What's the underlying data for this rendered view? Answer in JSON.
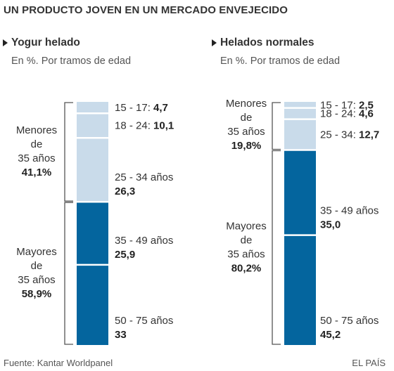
{
  "title": "UN PRODUCTO JOVEN EN UN MERCADO ENVEJECIDO",
  "colors": {
    "young": "#c9dbea",
    "old": "#04659e",
    "text": "#333333",
    "bracket": "#555555"
  },
  "chart_data": [
    {
      "type": "bar",
      "stacked": true,
      "title": "Yogur helado",
      "subtitle": "En %. Por tramos de edad",
      "unit": "%",
      "segments": [
        {
          "label": "15 - 17:",
          "value": 4.7,
          "value_text": "4,7",
          "group": "young"
        },
        {
          "label": "18 - 24:",
          "value": 10.1,
          "value_text": "10,1",
          "group": "young"
        },
        {
          "label": "25 - 34 años",
          "value": 26.3,
          "value_text": "26,3",
          "group": "young"
        },
        {
          "label": "35 - 49 años",
          "value": 25.9,
          "value_text": "25,9",
          "group": "old"
        },
        {
          "label": "50 - 75 años",
          "value": 33,
          "value_text": "33",
          "group": "old"
        }
      ],
      "groups": [
        {
          "key": "young",
          "lines": [
            "Menores",
            "de",
            "35 años"
          ],
          "total": 41.1,
          "total_text": "41,1%"
        },
        {
          "key": "old",
          "lines": [
            "Mayores",
            "de",
            "35 años"
          ],
          "total": 58.9,
          "total_text": "58,9%"
        }
      ]
    },
    {
      "type": "bar",
      "stacked": true,
      "title": "Helados normales",
      "subtitle": "En %. Por tramos de edad",
      "unit": "%",
      "segments": [
        {
          "label": "15 - 17:",
          "value": 2.5,
          "value_text": "2,5",
          "group": "young"
        },
        {
          "label": "18 - 24:",
          "value": 4.6,
          "value_text": "4,6",
          "group": "young"
        },
        {
          "label": "25 - 34:",
          "value": 12.7,
          "value_text": "12,7",
          "group": "young"
        },
        {
          "label": "35 - 49 años",
          "value": 35.0,
          "value_text": "35,0",
          "group": "old"
        },
        {
          "label": "50 - 75 años",
          "value": 45.2,
          "value_text": "45,2",
          "group": "old"
        }
      ],
      "groups": [
        {
          "key": "young",
          "lines": [
            "Menores",
            "de",
            "35 años"
          ],
          "total": 19.8,
          "total_text": "19,8%"
        },
        {
          "key": "old",
          "lines": [
            "Mayores",
            "de",
            "35 años"
          ],
          "total": 80.2,
          "total_text": "80,2%"
        }
      ]
    }
  ],
  "footer": {
    "source": "Fuente: Kantar Worldpanel",
    "credit": "EL PAÍS"
  }
}
